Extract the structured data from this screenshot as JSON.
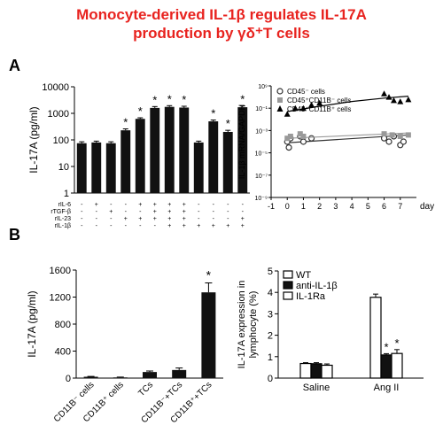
{
  "figure": {
    "title_line1": "Monocyte-derived IL-1β regulates IL-17A",
    "title_line2": "production by γδ⁺T cells",
    "panel_a": "A",
    "panel_b": "B",
    "accent_color": "#e8231f"
  },
  "chart_data": [
    {
      "id": "A-left",
      "type": "bar",
      "ylabel": "IL-17A (pg/ml)",
      "yscale": "log",
      "ylim": [
        1,
        10000
      ],
      "yticks": [
        "1",
        "10",
        "100",
        "1000",
        "10000"
      ],
      "values": [
        75,
        80,
        75,
        230,
        620,
        1600,
        1750,
        1650,
        80,
        500,
        200,
        1700
      ],
      "errors": [
        10,
        10,
        10,
        30,
        60,
        200,
        200,
        200,
        10,
        60,
        30,
        200
      ],
      "significant": [
        false,
        false,
        false,
        true,
        true,
        true,
        true,
        true,
        false,
        true,
        true,
        true
      ],
      "star": "*",
      "bar_color": "#111111",
      "condition_rows": [
        {
          "label": "rIL-6",
          "marks": [
            "-",
            "+",
            "-",
            "-",
            "+",
            "+",
            "+",
            "+",
            "-",
            "-",
            "-",
            "-"
          ]
        },
        {
          "label": "rTGF-β",
          "marks": [
            "-",
            "-",
            "+",
            "-",
            "-",
            "+",
            "+",
            "+",
            "-",
            "-",
            "-",
            "-"
          ]
        },
        {
          "label": "rIL-23",
          "marks": [
            "-",
            "-",
            "-",
            "+",
            "+",
            "+",
            "+",
            "+",
            "-",
            "-",
            "-",
            "+"
          ]
        },
        {
          "label": "rIL-1β",
          "marks": [
            "-",
            "-",
            "-",
            "-",
            "-",
            "-",
            "+",
            "+",
            "+",
            "+",
            "+",
            "+"
          ]
        }
      ]
    },
    {
      "id": "A-right",
      "type": "scatter",
      "ylabel": "IL-1β mRNA/GAPDH",
      "xlabel": "day",
      "xlim": [
        -1,
        8
      ],
      "xticks": [
        "-1",
        "0",
        "1",
        "2",
        "3",
        "4",
        "5",
        "6",
        "7"
      ],
      "yscale": "log",
      "ylim": [
        1e-09,
        10
      ],
      "yticks": [
        "10⁹",
        "10⁻¹",
        "10⁻³",
        "10⁻⁵",
        "10⁻⁷",
        "10⁻⁹"
      ],
      "legend_position": "top-left",
      "series": [
        {
          "name": "CD45⁻ cells",
          "marker": "circle-open",
          "color": "#333333",
          "x": [
            0,
            0.1,
            0.2,
            0.8,
            1.0,
            1.5,
            6.0,
            6.3,
            6.6,
            7.0,
            7.2
          ],
          "y": [
            0.0001,
            3e-05,
            0.0002,
            0.0003,
            0.0001,
            0.0002,
            0.0002,
            0.0001,
            0.0003,
            5e-05,
            0.0001
          ],
          "trend": [
            [
              0,
              8e-05
            ],
            [
              7.5,
              0.0004
            ]
          ]
        },
        {
          "name": "CD45⁺CD11B⁻ cells",
          "marker": "square",
          "color": "#999999",
          "x": [
            0,
            0.2,
            0.8,
            1.0,
            6.0,
            6.5,
            7.0,
            7.5
          ],
          "y": [
            0.0002,
            0.0003,
            0.0005,
            0.0003,
            0.0005,
            0.0004,
            0.0003,
            0.0004
          ],
          "trend": [
            [
              0,
              0.0002
            ],
            [
              7.5,
              0.0006
            ]
          ]
        },
        {
          "name": "CD45⁺CD11B⁺ cells",
          "marker": "triangle",
          "color": "#000000",
          "x": [
            0,
            0.5,
            1.0,
            1.5,
            2.0,
            6.0,
            6.3,
            6.6,
            7.0,
            7.5
          ],
          "y": [
            0.03,
            0.1,
            0.1,
            0.2,
            0.3,
            2,
            1,
            0.5,
            0.4,
            0.6
          ],
          "trend": [
            [
              0,
              0.05
            ],
            [
              2,
              0.15
            ],
            [
              4,
              0.4
            ],
            [
              6,
              0.8
            ],
            [
              7.5,
              1.2
            ]
          ]
        }
      ]
    },
    {
      "id": "B-left",
      "type": "bar",
      "ylabel": "IL-17A (pg/ml)",
      "ylim": [
        0,
        1600
      ],
      "yticks": [
        "0",
        "400",
        "800",
        "1200",
        "1600"
      ],
      "categories": [
        "CD11B⁻ cells",
        "CD11B⁺ cells",
        "TCs",
        "CD11B⁻+TCs",
        "CD11B⁺+TCs"
      ],
      "values": [
        20,
        10,
        90,
        120,
        1270
      ],
      "errors": [
        5,
        5,
        15,
        30,
        140
      ],
      "significant": [
        false,
        false,
        false,
        false,
        true
      ],
      "star": "*",
      "bar_color": "#111111"
    },
    {
      "id": "B-right",
      "type": "bar",
      "ylabel": "IL-17A expression in lymphocyte (%)",
      "ylim": [
        0,
        5
      ],
      "yticks": [
        "0",
        "1",
        "2",
        "3",
        "4",
        "5"
      ],
      "categories": [
        "Saline",
        "Ang II"
      ],
      "legend_position": "top-left",
      "star": "*",
      "series": [
        {
          "name": "WT",
          "fill": "#ffffff",
          "values": [
            0.68,
            3.77
          ],
          "errors": [
            0.04,
            0.15
          ],
          "significant": [
            false,
            false
          ]
        },
        {
          "name": "anti-IL-1β",
          "fill": "#111111",
          "values": [
            0.67,
            1.08
          ],
          "errors": [
            0.05,
            0.06
          ],
          "significant": [
            false,
            true
          ]
        },
        {
          "name": "IL-1Ra",
          "fill": "#ffffff",
          "values": [
            0.6,
            1.15
          ],
          "errors": [
            0.06,
            0.18
          ],
          "significant": [
            false,
            true
          ]
        }
      ]
    }
  ]
}
